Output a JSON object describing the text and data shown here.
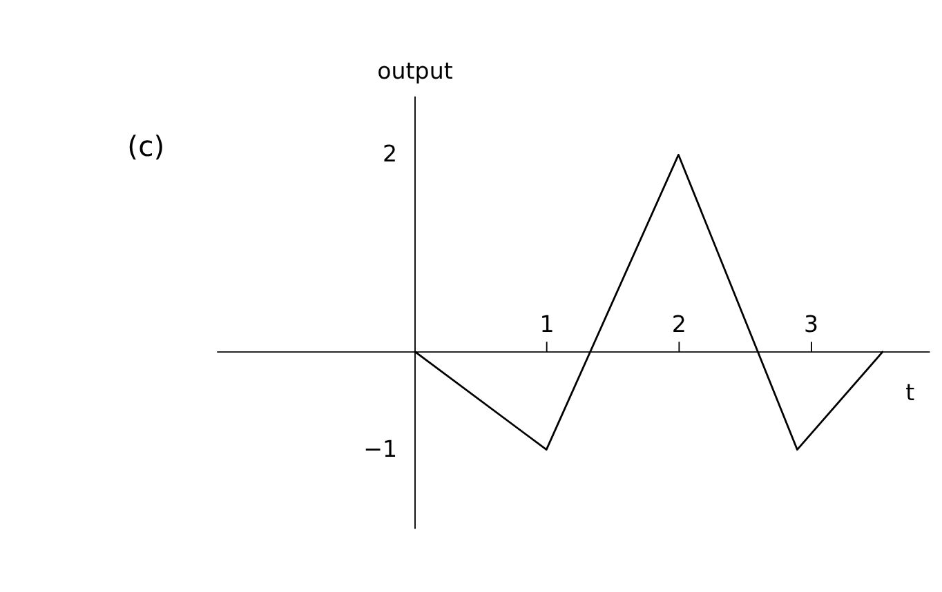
{
  "chart_data": {
    "type": "line",
    "xlabel": "t",
    "ylabel": "output",
    "annotations": [
      "(c)"
    ],
    "x": [
      0,
      1,
      2,
      2.9,
      3.55
    ],
    "series": [
      {
        "color": "#000000",
        "values": [
          0,
          -1,
          2,
          -1,
          0
        ]
      }
    ],
    "xlim": [
      -1.5,
      3.9
    ],
    "ylim": [
      -1.8,
      2.6
    ],
    "xticks": [
      1,
      2,
      3
    ],
    "yticks": [
      -1,
      2
    ],
    "grid": false,
    "marker": "none",
    "line_style": "solid"
  }
}
